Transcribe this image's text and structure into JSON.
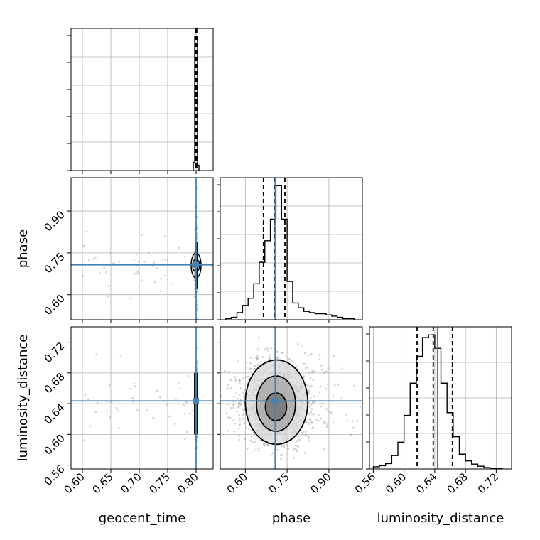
{
  "chart_data": {
    "type": "corner",
    "parameters": [
      "geocent_time",
      "phase",
      "luminosity_distance"
    ],
    "truths": {
      "geocent_time": 0.8,
      "phase": 0.7071,
      "luminosity_distance": 0.6436
    },
    "quantiles": {
      "geocent_time": [
        0.799,
        0.8,
        0.8012
      ],
      "phase": [
        0.665,
        0.705,
        0.742
      ],
      "luminosity_distance": [
        0.617,
        0.638,
        0.663
      ]
    },
    "colors": {
      "truth": "#4682b4",
      "hist": "#000000",
      "grid": "#b0b0b0",
      "points": "#7f7f7f"
    },
    "grid": true,
    "panels": {
      "geocent_time_hist": {
        "xlim": [
          0.58,
          0.83
        ],
        "bin_edges": [
          0.795,
          0.7975,
          0.8,
          0.8025,
          0.805
        ],
        "counts": [
          0.3,
          5.0,
          5.0,
          0.2
        ],
        "xticks": [
          0.6,
          0.65,
          0.7,
          0.75,
          0.8
        ]
      },
      "phase_hist": {
        "xlim": [
          0.51,
          1.02
        ],
        "bin_edges": [
          0.53,
          0.55,
          0.57,
          0.59,
          0.61,
          0.63,
          0.65,
          0.67,
          0.69,
          0.71,
          0.73,
          0.75,
          0.77,
          0.79,
          0.81,
          0.83,
          0.85,
          0.87,
          0.89,
          0.91,
          0.93,
          0.95,
          0.97,
          0.99
        ],
        "counts": [
          0.05,
          0.1,
          0.3,
          0.6,
          0.9,
          1.5,
          2.4,
          3.3,
          4.2,
          5.6,
          4.2,
          1.6,
          0.7,
          0.5,
          0.35,
          0.3,
          0.25,
          0.25,
          0.2,
          0.15,
          0.1,
          0.05,
          0.05
        ],
        "xticks": [
          0.6,
          0.75,
          0.9
        ]
      },
      "luminosity_distance_hist": {
        "xlim": [
          0.555,
          0.74
        ],
        "bin_edges": [
          0.56,
          0.568,
          0.576,
          0.584,
          0.592,
          0.6,
          0.608,
          0.616,
          0.624,
          0.632,
          0.64,
          0.648,
          0.656,
          0.664,
          0.672,
          0.68,
          0.688,
          0.696,
          0.704,
          0.712,
          0.72,
          0.728
        ],
        "counts": [
          0.08,
          0.12,
          0.2,
          0.5,
          1.0,
          2.0,
          3.2,
          4.2,
          4.9,
          5.0,
          4.5,
          3.2,
          2.1,
          1.2,
          0.55,
          0.3,
          0.18,
          0.1,
          0.05,
          0.03,
          0.01
        ],
        "xticks": [
          0.56,
          0.6,
          0.64,
          0.68,
          0.72
        ]
      },
      "phase_vs_geocent_time": {
        "xlim": [
          0.58,
          0.83
        ],
        "ylim": [
          0.51,
          1.02
        ],
        "yticks": [
          0.6,
          0.75,
          0.9
        ]
      },
      "luminosity_distance_vs_geocent_time": {
        "xlim": [
          0.58,
          0.83
        ],
        "ylim": [
          0.555,
          0.74
        ],
        "xticks": [
          0.6,
          0.65,
          0.7,
          0.75,
          0.8
        ],
        "yticks": [
          0.56,
          0.6,
          0.64,
          0.68,
          0.72
        ]
      },
      "luminosity_distance_vs_phase": {
        "xlim": [
          0.51,
          1.02
        ],
        "ylim": [
          0.555,
          0.74
        ],
        "xticks": [
          0.6,
          0.75,
          0.9
        ],
        "contours": [
          {
            "center": [
              0.71,
              0.636
            ],
            "semi_axes": [
              0.038,
              0.018
            ]
          },
          {
            "center": [
              0.71,
              0.64
            ],
            "semi_axes": [
              0.07,
              0.036
            ]
          },
          {
            "center": [
              0.712,
              0.642
            ],
            "semi_axes": [
              0.112,
              0.055
            ]
          }
        ]
      }
    },
    "tick_labels": {
      "geocent_time": [
        "0.60",
        "0.65",
        "0.70",
        "0.75",
        "0.80"
      ],
      "phase": [
        "0.60",
        "0.75",
        "0.90"
      ],
      "luminosity_distance": [
        "0.56",
        "0.60",
        "0.64",
        "0.68",
        "0.72"
      ]
    },
    "axis_labels": {
      "geocent_time": "geocent_time",
      "phase": "phase",
      "luminosity_distance": "luminosity_distance"
    }
  }
}
